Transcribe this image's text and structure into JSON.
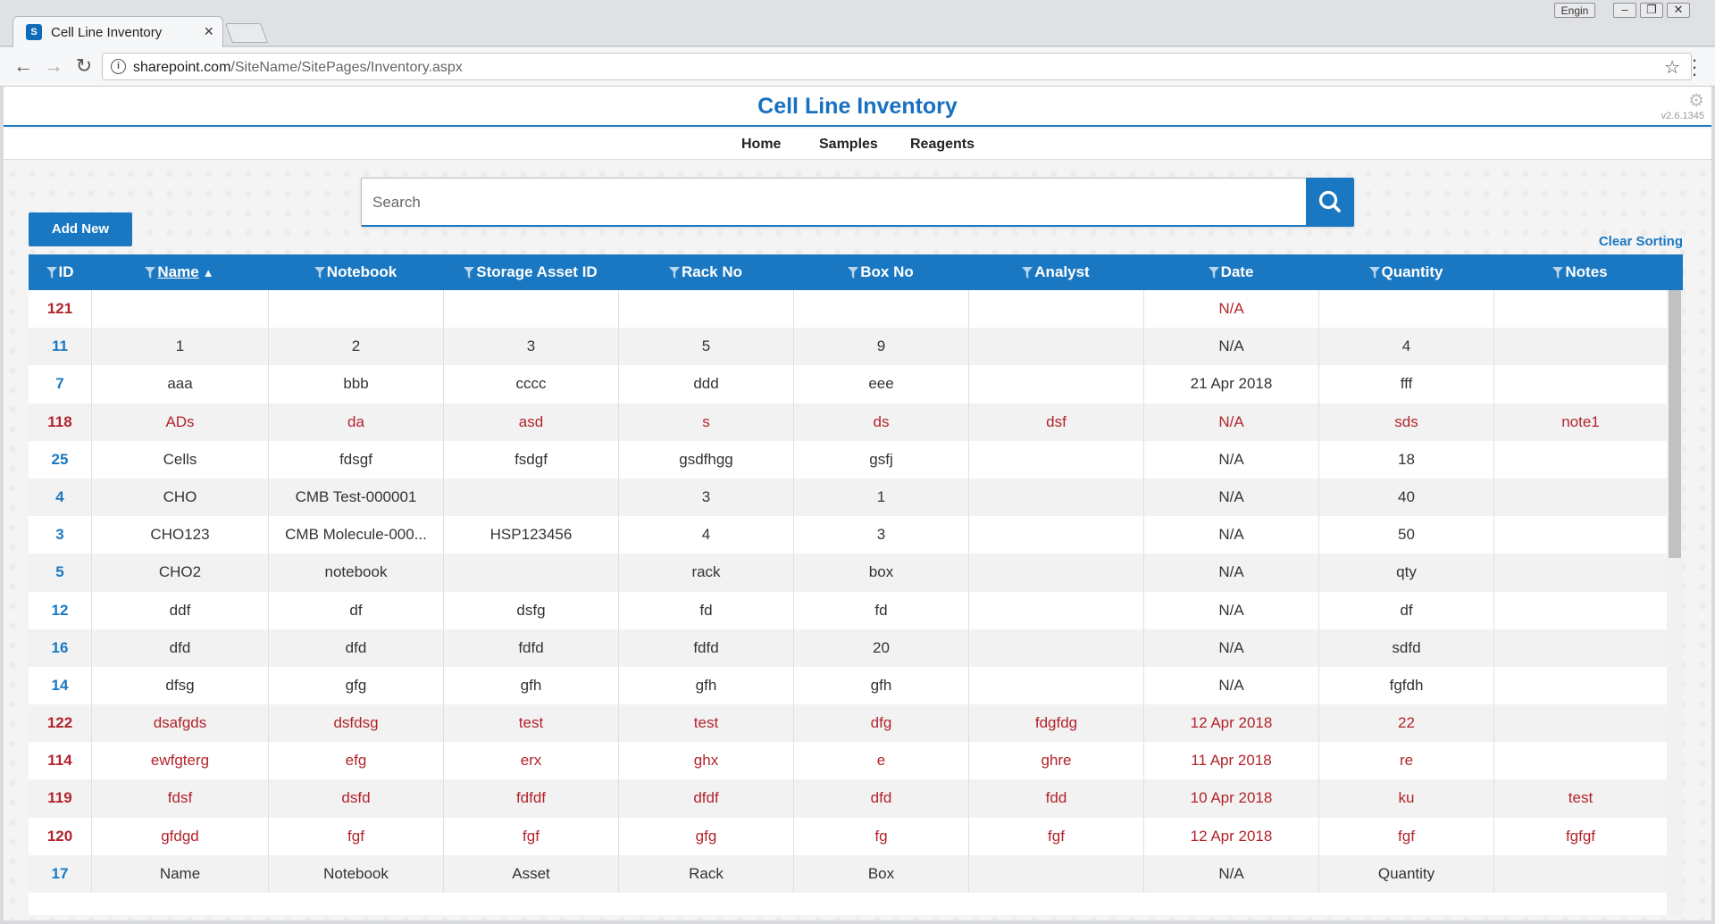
{
  "browser": {
    "tab_title": "Cell Line Inventory",
    "favicon_text": "S",
    "user_badge": "Engin",
    "url_host": "sharepoint.com",
    "url_path": "/SiteName/SitePages/Inventory.aspx"
  },
  "app": {
    "title": "Cell Line Inventory",
    "version": "v2.6.1345",
    "nav": [
      "Home",
      "Samples",
      "Reagents"
    ]
  },
  "search": {
    "placeholder": "Search"
  },
  "actions": {
    "add_new": "Add New",
    "clear_sorting": "Clear Sorting"
  },
  "table": {
    "columns": [
      "ID",
      "Name",
      "Notebook",
      "Storage Asset ID",
      "Rack No",
      "Box No",
      "Analyst",
      "Date",
      "Quantity",
      "Notes"
    ],
    "sort_indicator": "▲",
    "rows": [
      {
        "flag": true,
        "cells": [
          "121",
          "",
          "",
          "",
          "",
          "",
          "",
          "N/A",
          "",
          ""
        ]
      },
      {
        "flag": false,
        "cells": [
          "11",
          "1",
          "2",
          "3",
          "5",
          "9",
          "",
          "N/A",
          "4",
          ""
        ]
      },
      {
        "flag": false,
        "cells": [
          "7",
          "aaa",
          "bbb",
          "cccc",
          "ddd",
          "eee",
          "",
          "21 Apr 2018",
          "fff",
          ""
        ]
      },
      {
        "flag": true,
        "cells": [
          "118",
          "ADs",
          "da",
          "asd",
          "s",
          "ds",
          "dsf",
          "N/A",
          "sds",
          "note1"
        ]
      },
      {
        "flag": false,
        "cells": [
          "25",
          "Cells",
          "fdsgf",
          "fsdgf",
          "gsdfhgg",
          "gsfj",
          "",
          "N/A",
          "18",
          ""
        ]
      },
      {
        "flag": false,
        "cells": [
          "4",
          "CHO",
          "CMB Test-000001",
          "",
          "3",
          "1",
          "",
          "N/A",
          "40",
          ""
        ]
      },
      {
        "flag": false,
        "cells": [
          "3",
          "CHO123",
          "CMB Molecule-000...",
          "HSP123456",
          "4",
          "3",
          "",
          "N/A",
          "50",
          ""
        ]
      },
      {
        "flag": false,
        "cells": [
          "5",
          "CHO2",
          "notebook",
          "",
          "rack",
          "box",
          "",
          "N/A",
          "qty",
          ""
        ]
      },
      {
        "flag": false,
        "cells": [
          "12",
          "ddf",
          "df",
          "dsfg",
          "fd",
          "fd",
          "",
          "N/A",
          "df",
          ""
        ]
      },
      {
        "flag": false,
        "cells": [
          "16",
          "dfd",
          "dfd",
          "fdfd",
          "fdfd",
          "20",
          "",
          "N/A",
          "sdfd",
          ""
        ]
      },
      {
        "flag": false,
        "cells": [
          "14",
          "dfsg",
          "gfg",
          "gfh",
          "gfh",
          "gfh",
          "",
          "N/A",
          "fgfdh",
          ""
        ]
      },
      {
        "flag": true,
        "cells": [
          "122",
          "dsafgds",
          "dsfdsg",
          "test",
          "test",
          "dfg",
          "fdgfdg",
          "12 Apr 2018",
          "22",
          ""
        ]
      },
      {
        "flag": true,
        "cells": [
          "114",
          "ewfgterg",
          "efg",
          "erx",
          "ghx",
          "e",
          "ghre",
          "11 Apr 2018",
          "re",
          ""
        ]
      },
      {
        "flag": true,
        "cells": [
          "119",
          "fdsf",
          "dsfd",
          "fdfdf",
          "dfdf",
          "dfd",
          "fdd",
          "10 Apr 2018",
          "ku",
          "test"
        ]
      },
      {
        "flag": true,
        "cells": [
          "120",
          "gfdgd",
          "fgf",
          "fgf",
          "gfg",
          "fg",
          "fgf",
          "12 Apr 2018",
          "fgf",
          "fgfgf"
        ]
      },
      {
        "flag": false,
        "cells": [
          "17",
          "Name",
          "Notebook",
          "Asset",
          "Rack",
          "Box",
          "",
          "N/A",
          "Quantity",
          ""
        ]
      }
    ]
  },
  "colors": {
    "accent": "#1a78c2",
    "flagged_row_text": "#b3232b",
    "title": "#1770c0"
  },
  "icons": [
    "back-icon",
    "forward-icon",
    "reload-icon",
    "info-icon",
    "star-icon",
    "menu-icon",
    "gear-icon",
    "search-icon",
    "filter-icon"
  ]
}
